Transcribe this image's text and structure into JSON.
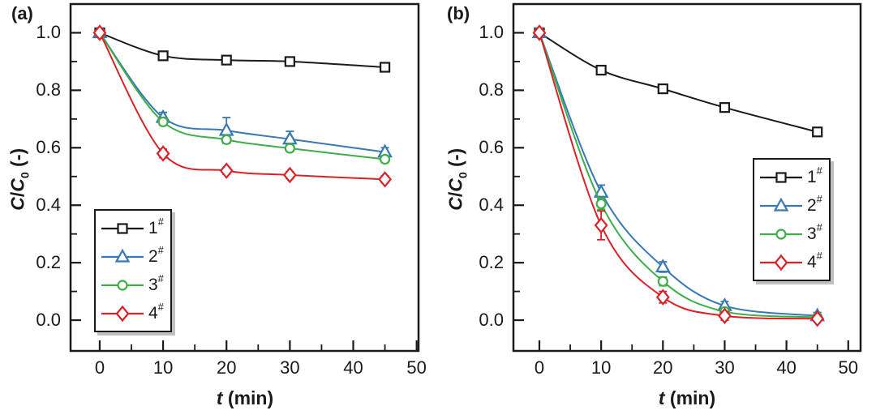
{
  "figure": {
    "panels": [
      {
        "tag": "(a)"
      },
      {
        "tag": "(b)"
      }
    ],
    "axis_labels": {
      "x_var": "t",
      "x_unit": "(min)",
      "y_c1": "C",
      "y_slash": "/",
      "y_c2": "C",
      "y_sub": "0",
      "y_unit": "(-)"
    },
    "colors": {
      "axis": "#1a1a1a",
      "background": "#ffffff"
    }
  },
  "chart_data": [
    {
      "type": "line",
      "panel": "(a)",
      "title": "",
      "xlabel": "t (min)",
      "ylabel": "C/C0 (-)",
      "x": [
        0,
        10,
        20,
        30,
        45
      ],
      "xlim": [
        -4.6,
        50.3
      ],
      "ylim": [
        -0.107,
        1.1
      ],
      "x_ticks": [
        0,
        10,
        20,
        30,
        40,
        50
      ],
      "x_tick_labels": [
        "0",
        "10",
        "20",
        "30",
        "40",
        "50"
      ],
      "x_minor_ticks": [
        5,
        15,
        25,
        35,
        45
      ],
      "y_ticks": [
        0,
        0.2,
        0.4,
        0.6,
        0.8,
        1.0
      ],
      "y_tick_labels": [
        "0.0",
        "0.2",
        "0.4",
        "0.6",
        "0.8",
        "1.0"
      ],
      "y_minor_ticks": [
        0.1,
        0.3,
        0.5,
        0.7,
        0.9
      ],
      "grid": false,
      "legend_position": "bottom-left",
      "series": [
        {
          "name": "1#",
          "label_base": "1",
          "label_sup": "#",
          "marker": "square",
          "color": "#1a1a1a",
          "values": [
            1.0,
            0.92,
            0.905,
            0.9,
            0.88
          ],
          "errors": [
            0.01,
            0.015,
            0.012,
            0.012,
            0.012
          ]
        },
        {
          "name": "2#",
          "label_base": "2",
          "label_sup": "#",
          "marker": "triangle",
          "color": "#3878b4",
          "values": [
            1.0,
            0.705,
            0.66,
            0.63,
            0.585
          ],
          "errors": [
            0.012,
            0.018,
            0.045,
            0.027,
            0.015
          ]
        },
        {
          "name": "3#",
          "label_base": "3",
          "label_sup": "#",
          "marker": "circle",
          "color": "#3fae4a",
          "values": [
            1.0,
            0.69,
            0.628,
            0.598,
            0.56
          ],
          "errors": [
            0.012,
            0.012,
            0.012,
            0.012,
            0.012
          ]
        },
        {
          "name": "4#",
          "label_base": "4",
          "label_sup": "#",
          "marker": "diamond",
          "color": "#da2128",
          "values": [
            1.0,
            0.58,
            0.52,
            0.505,
            0.49
          ],
          "errors": [
            0.01,
            0.015,
            0.012,
            0.012,
            0.012
          ]
        }
      ]
    },
    {
      "type": "line",
      "panel": "(b)",
      "title": "",
      "xlabel": "t (min)",
      "ylabel": "C/C0 (-)",
      "x": [
        0,
        10,
        20,
        30,
        45
      ],
      "xlim": [
        -4.2,
        52.0
      ],
      "ylim": [
        -0.107,
        1.1
      ],
      "x_ticks": [
        0,
        10,
        20,
        30,
        40,
        50
      ],
      "x_tick_labels": [
        "0",
        "10",
        "20",
        "30",
        "40",
        "50"
      ],
      "x_minor_ticks": [
        5,
        15,
        25,
        35,
        45
      ],
      "y_ticks": [
        0,
        0.2,
        0.4,
        0.6,
        0.8,
        1.0
      ],
      "y_tick_labels": [
        "0.0",
        "0.2",
        "0.4",
        "0.6",
        "0.8",
        "1.0"
      ],
      "y_minor_ticks": [
        0.1,
        0.3,
        0.5,
        0.7,
        0.9
      ],
      "grid": false,
      "legend_position": "center-right",
      "series": [
        {
          "name": "1#",
          "label_base": "1",
          "label_sup": "#",
          "marker": "square",
          "color": "#1a1a1a",
          "values": [
            1.0,
            0.87,
            0.805,
            0.74,
            0.655
          ],
          "errors": [
            0.01,
            0.015,
            0.012,
            0.015,
            0.012
          ]
        },
        {
          "name": "2#",
          "label_base": "2",
          "label_sup": "#",
          "marker": "triangle",
          "color": "#3878b4",
          "values": [
            1.0,
            0.445,
            0.185,
            0.05,
            0.015
          ],
          "errors": [
            0.015,
            0.025,
            0.018,
            0.015,
            0.012
          ]
        },
        {
          "name": "3#",
          "label_base": "3",
          "label_sup": "#",
          "marker": "circle",
          "color": "#3fae4a",
          "values": [
            1.0,
            0.405,
            0.135,
            0.03,
            0.01
          ],
          "errors": [
            0.012,
            0.02,
            0.015,
            0.012,
            0.01
          ]
        },
        {
          "name": "4#",
          "label_base": "4",
          "label_sup": "#",
          "marker": "diamond",
          "color": "#da2128",
          "values": [
            1.0,
            0.33,
            0.08,
            0.015,
            0.005
          ],
          "errors": [
            0.01,
            0.05,
            0.02,
            0.015,
            0.01
          ]
        }
      ]
    }
  ]
}
